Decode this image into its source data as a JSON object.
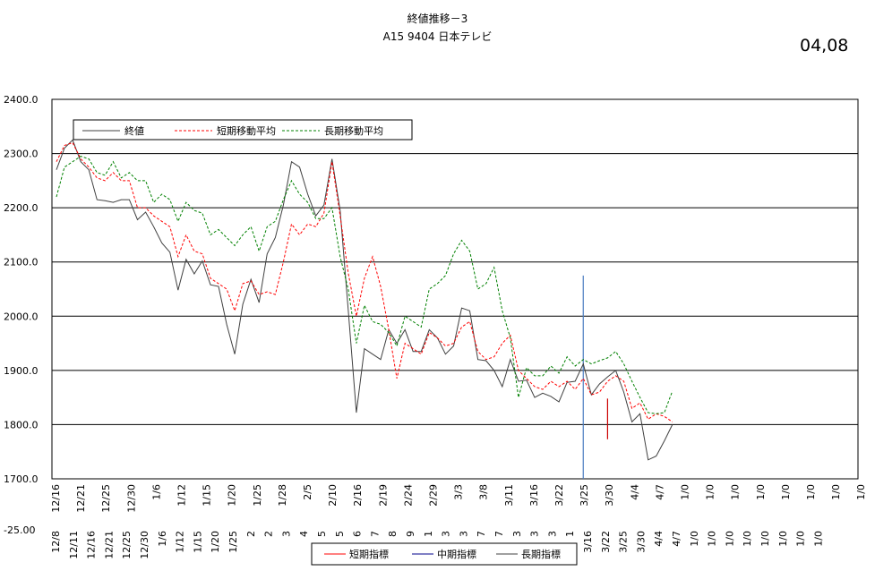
{
  "header": {
    "title": "終値推移－3",
    "subtitle": "A15 9404 日本テレビ",
    "corner_label": "04,08"
  },
  "chart_data": {
    "type": "line",
    "ylim": [
      1700,
      2400
    ],
    "yticks": [
      "2400.0",
      "2300.0",
      "2200.0",
      "2100.0",
      "2000.0",
      "1900.0",
      "1800.0",
      "1700.0"
    ],
    "y_bottom_label": "-25.00",
    "grid": true,
    "x_upper_labels": [
      "12/16",
      "12/21",
      "12/25",
      "12/30",
      "1/6",
      "1/12",
      "1/15",
      "1/20",
      "1/25",
      "1/28",
      "2/5",
      "2/10",
      "2/16",
      "2/19",
      "2/24",
      "2/29",
      "3/3",
      "3/8",
      "3/11",
      "3/16",
      "3/22",
      "3/25",
      "3/30",
      "4/4",
      "4/7",
      "1/0",
      "1/0",
      "1/0",
      "1/0",
      "1/0",
      "1/0",
      "1/0",
      "1/0"
    ],
    "x_lower_labels": [
      "12/8",
      "12/11",
      "12/16",
      "12/21",
      "12/25",
      "12/30",
      "1/6",
      "1/12",
      "1/15",
      "1/20",
      "1/25",
      "2",
      "2",
      "3",
      "4",
      "5",
      "5",
      "6",
      "7",
      "8",
      "9",
      "1",
      "3",
      "3",
      "7",
      "7",
      "3",
      "3",
      "3",
      "1",
      "3/16",
      "3/22",
      "3/25",
      "3/30",
      "4/4",
      "4/7",
      "1/0",
      "1/0",
      "1/0",
      "1/0",
      "1/0",
      "1/0",
      "1/0",
      "1/0"
    ],
    "series": [
      {
        "name": "終値",
        "color": "#404040",
        "dash": "",
        "values": [
          2270,
          2310,
          2325,
          2285,
          2270,
          2215,
          2213,
          2210,
          2215,
          2215,
          2178,
          2192,
          2165,
          2135,
          2118,
          2048,
          2105,
          2078,
          2102,
          2058,
          2055,
          1985,
          1930,
          2022,
          2068,
          2025,
          2115,
          2145,
          2205,
          2285,
          2275,
          2225,
          2185,
          2205,
          2290,
          2195,
          2012,
          1822,
          1940,
          1930,
          1920,
          1975,
          1950,
          1975,
          1935,
          1935,
          1975,
          1960,
          1930,
          1945,
          2015,
          2010,
          1920,
          1918,
          1900,
          1870,
          1920,
          1880,
          1882,
          1850,
          1858,
          1852,
          1842,
          1878,
          1880,
          1912,
          1855,
          1875,
          1888,
          1900,
          1860,
          1805,
          1820,
          1735,
          1742,
          1770,
          1800
        ],
        "label": "終値"
      },
      {
        "name": "短期移動平均",
        "color": "#ff0000",
        "dash": "3,2",
        "values": [
          2285,
          2315,
          2320,
          2290,
          2275,
          2255,
          2250,
          2265,
          2250,
          2250,
          2200,
          2200,
          2185,
          2175,
          2165,
          2110,
          2150,
          2120,
          2115,
          2070,
          2060,
          2050,
          2010,
          2060,
          2065,
          2040,
          2045,
          2040,
          2100,
          2170,
          2150,
          2170,
          2165,
          2190,
          2285,
          2185,
          2080,
          2000,
          2070,
          2110,
          2055,
          1975,
          1885,
          1950,
          1940,
          1930,
          1970,
          1960,
          1945,
          1950,
          1980,
          1990,
          1935,
          1920,
          1925,
          1950,
          1965,
          1900,
          1885,
          1870,
          1865,
          1880,
          1870,
          1880,
          1865,
          1885,
          1855,
          1860,
          1880,
          1890,
          1880,
          1830,
          1840,
          1810,
          1820,
          1815,
          1805
        ],
        "label": "短期移動平均"
      },
      {
        "name": "長期移動平均",
        "color": "#008000",
        "dash": "3,2",
        "values": [
          2220,
          2275,
          2285,
          2295,
          2290,
          2265,
          2260,
          2285,
          2255,
          2265,
          2250,
          2250,
          2210,
          2225,
          2215,
          2175,
          2210,
          2195,
          2190,
          2150,
          2160,
          2145,
          2130,
          2150,
          2165,
          2120,
          2165,
          2175,
          2215,
          2250,
          2225,
          2210,
          2180,
          2180,
          2200,
          2110,
          2050,
          1950,
          2020,
          1990,
          1985,
          1970,
          1945,
          2000,
          1990,
          1980,
          2050,
          2060,
          2075,
          2115,
          2140,
          2120,
          2050,
          2060,
          2090,
          2010,
          1960,
          1850,
          1905,
          1890,
          1890,
          1908,
          1895,
          1925,
          1908,
          1920,
          1912,
          1918,
          1923,
          1935,
          1912,
          1880,
          1850,
          1822,
          1820,
          1822,
          1862
        ],
        "label": "長期移動平均"
      }
    ],
    "legend_main": {
      "position": "top-left",
      "entries": [
        "終値",
        "短期移動平均",
        "長期移動平均"
      ]
    },
    "legend_bottom": {
      "position": "bottom",
      "entries": [
        "短期指標",
        "中期指標",
        "長期指標"
      ],
      "colors": [
        "#ff0000",
        "#00008b",
        "#404040"
      ]
    },
    "markers": [
      {
        "series": "中期指標",
        "index": 65,
        "from": 1700,
        "to": 2075,
        "color": "#4a7cc0"
      },
      {
        "series": "短期指標",
        "index": 68,
        "from": 1773,
        "to": 1848,
        "color": "#cc0000"
      }
    ]
  }
}
